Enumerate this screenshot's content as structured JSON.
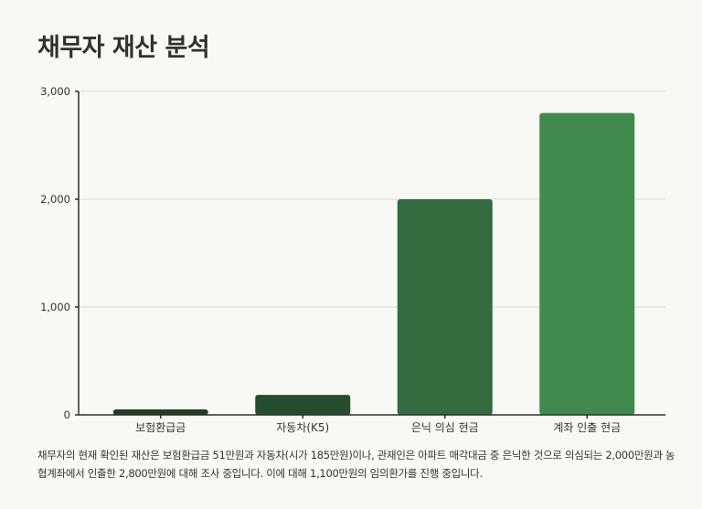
{
  "title": "채무자 재산 분석",
  "chart_data": {
    "type": "bar",
    "categories": [
      "보험환급금",
      "자동차(K5)",
      "은닉 의심 현금",
      "계좌 인출 현금"
    ],
    "values": [
      51,
      185,
      2000,
      2800
    ],
    "yticks": [
      "0",
      "1,000",
      "2,000",
      "3,000"
    ],
    "ytick_values": [
      0,
      1000,
      2000,
      3000
    ],
    "ylim": [
      0,
      3000
    ],
    "colors": [
      "#1f3d24",
      "#244d2c",
      "#336b3f",
      "#418a4e"
    ],
    "grid": true,
    "title": "채무자 재산 분석",
    "xlabel": "",
    "ylabel": ""
  },
  "caption": "채무자의 현재 확인된 재산은 보험환급금 51만원과 자동차(시가 185만원)이나, 관재인은 아파트 매각대금 중 은닉한 것으로 의심되는 2,000만원과 농협계좌에서 인출한 2,800만원에 대해 조사 중입니다. 이에 대해 1,100만원의 임의환가를 진행 중입니다."
}
